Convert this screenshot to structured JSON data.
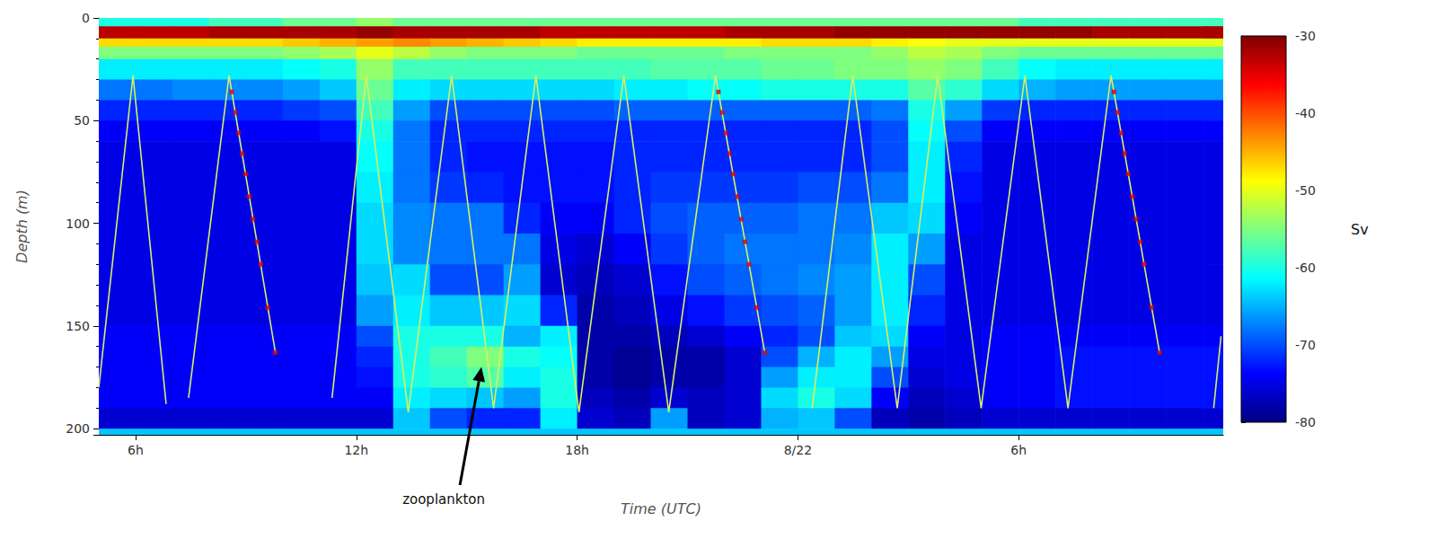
{
  "chart_data": {
    "type": "heatmap",
    "x_label": "Time (UTC)",
    "y_label": "Depth (m)",
    "xlim": [
      5,
      35.56
    ],
    "xticks": [
      {
        "value": 6,
        "label": "6h"
      },
      {
        "value": 12,
        "label": "12h"
      },
      {
        "value": 18,
        "label": "18h"
      },
      {
        "value": 24,
        "label": "8/22"
      },
      {
        "value": 30,
        "label": "6h"
      }
    ],
    "ylim": [
      0,
      203
    ],
    "yticks": [
      0,
      50,
      100,
      150,
      200
    ],
    "grid": false,
    "cells": {
      "x_edges": [
        5,
        6,
        7,
        8,
        9,
        10,
        11,
        12,
        13,
        14,
        15,
        16,
        17,
        18,
        19,
        20,
        21,
        22,
        23,
        24,
        25,
        26,
        27,
        28,
        29,
        30,
        31,
        32,
        33,
        34,
        35,
        36
      ],
      "depth_edges": [
        0,
        4,
        10,
        14,
        20,
        30,
        40,
        50,
        60,
        75,
        90,
        105,
        120,
        135,
        150,
        160,
        170,
        180,
        190,
        200,
        203
      ],
      "sv": [
        [
          -60,
          -60,
          -60,
          -58,
          -58,
          -56,
          -56,
          -54,
          -56,
          -56,
          -56,
          -56,
          -56,
          -56,
          -56,
          -56,
          -56,
          -56,
          -56,
          -56,
          -56,
          -56,
          -56,
          -56,
          -56,
          -58,
          -58,
          -58,
          -58,
          -58,
          -58
        ],
        [
          -33,
          -33,
          -33,
          -32,
          -32,
          -32,
          -32,
          -31,
          -32,
          -32,
          -32,
          -32,
          -33,
          -33,
          -33,
          -33,
          -33,
          -32,
          -32,
          -32,
          -31,
          -31,
          -31,
          -31,
          -31,
          -31,
          -31,
          -32,
          -32,
          -32,
          -32
        ],
        [
          -47,
          -47,
          -47,
          -47,
          -47,
          -46,
          -45,
          -44,
          -43,
          -44,
          -45,
          -46,
          -47,
          -48,
          -48,
          -48,
          -48,
          -48,
          -47,
          -47,
          -47,
          -48,
          -49,
          -50,
          -50,
          -50,
          -50,
          -50,
          -50,
          -50,
          -50
        ],
        [
          -55,
          -55,
          -55,
          -55,
          -55,
          -54,
          -53,
          -50,
          -52,
          -54,
          -55,
          -55,
          -55,
          -56,
          -56,
          -56,
          -56,
          -55,
          -55,
          -55,
          -55,
          -54,
          -52,
          -53,
          -55,
          -56,
          -56,
          -56,
          -56,
          -56,
          -56
        ],
        [
          -62,
          -62,
          -62,
          -62,
          -62,
          -61,
          -60,
          -54,
          -58,
          -58,
          -58,
          -58,
          -58,
          -58,
          -58,
          -57,
          -57,
          -57,
          -56,
          -56,
          -55,
          -55,
          -54,
          -55,
          -58,
          -61,
          -62,
          -62,
          -62,
          -62,
          -62
        ],
        [
          -68,
          -68,
          -67,
          -67,
          -67,
          -66,
          -64,
          -56,
          -62,
          -63,
          -63,
          -63,
          -63,
          -63,
          -62,
          -62,
          -61,
          -61,
          -60,
          -60,
          -60,
          -60,
          -57,
          -59,
          -63,
          -65,
          -66,
          -66,
          -66,
          -66,
          -66
        ],
        [
          -72,
          -72,
          -72,
          -72,
          -72,
          -71,
          -70,
          -58,
          -66,
          -70,
          -70,
          -70,
          -70,
          -70,
          -69,
          -69,
          -69,
          -69,
          -69,
          -69,
          -69,
          -68,
          -60,
          -66,
          -71,
          -72,
          -72,
          -72,
          -72,
          -72,
          -72
        ],
        [
          -74,
          -74,
          -74,
          -74,
          -74,
          -74,
          -73,
          -60,
          -68,
          -72,
          -72,
          -72,
          -72,
          -72,
          -72,
          -72,
          -72,
          -72,
          -72,
          -72,
          -72,
          -70,
          -61,
          -70,
          -74,
          -74,
          -74,
          -74,
          -74,
          -74,
          -74
        ],
        [
          -75,
          -75,
          -75,
          -75,
          -75,
          -75,
          -75,
          -61,
          -68,
          -72,
          -73,
          -73,
          -73,
          -73,
          -72,
          -72,
          -72,
          -72,
          -72,
          -72,
          -72,
          -70,
          -62,
          -72,
          -75,
          -75,
          -75,
          -75,
          -75,
          -75,
          -75
        ],
        [
          -75,
          -75,
          -75,
          -75,
          -75,
          -75,
          -75,
          -62,
          -68,
          -71,
          -72,
          -73,
          -73,
          -73,
          -72,
          -71,
          -71,
          -71,
          -71,
          -70,
          -70,
          -68,
          -62,
          -73,
          -75,
          -75,
          -75,
          -75,
          -75,
          -75,
          -75
        ],
        [
          -75,
          -75,
          -75,
          -75,
          -75,
          -75,
          -75,
          -63,
          -67,
          -68,
          -68,
          -72,
          -74,
          -74,
          -72,
          -70,
          -69,
          -69,
          -69,
          -68,
          -68,
          -64,
          -63,
          -74,
          -75,
          -75,
          -75,
          -75,
          -75,
          -75,
          -75
        ],
        [
          -75,
          -75,
          -75,
          -75,
          -75,
          -75,
          -75,
          -63,
          -67,
          -68,
          -68,
          -68,
          -75,
          -76,
          -74,
          -71,
          -69,
          -68,
          -68,
          -68,
          -67,
          -62,
          -66,
          -75,
          -75,
          -75,
          -75,
          -75,
          -75,
          -75,
          -75
        ],
        [
          -75,
          -75,
          -75,
          -75,
          -75,
          -75,
          -75,
          -64,
          -63,
          -70,
          -70,
          -66,
          -76,
          -77,
          -76,
          -73,
          -70,
          -69,
          -68,
          -67,
          -66,
          -62,
          -70,
          -75,
          -75,
          -75,
          -75,
          -75,
          -75,
          -75,
          -75
        ],
        [
          -75,
          -75,
          -75,
          -75,
          -75,
          -75,
          -75,
          -66,
          -62,
          -64,
          -64,
          -63,
          -72,
          -78,
          -77,
          -75,
          -73,
          -71,
          -70,
          -69,
          -66,
          -62,
          -72,
          -75,
          -75,
          -75,
          -75,
          -75,
          -75,
          -75,
          -75
        ],
        [
          -74,
          -74,
          -74,
          -74,
          -74,
          -74,
          -74,
          -70,
          -60,
          -60,
          -60,
          -65,
          -62,
          -78,
          -78,
          -77,
          -76,
          -74,
          -72,
          -70,
          -64,
          -63,
          -74,
          -75,
          -74,
          -74,
          -74,
          -74,
          -74,
          -74,
          -74
        ],
        [
          -74,
          -74,
          -74,
          -74,
          -74,
          -74,
          -74,
          -72,
          -60,
          -58,
          -55,
          -60,
          -61,
          -78,
          -79,
          -78,
          -78,
          -76,
          -70,
          -65,
          -62,
          -66,
          -75,
          -75,
          -74,
          -74,
          -73,
          -73,
          -73,
          -73,
          -73
        ],
        [
          -74,
          -74,
          -74,
          -74,
          -74,
          -74,
          -74,
          -73,
          -60,
          -59,
          -57,
          -62,
          -60,
          -78,
          -79,
          -78,
          -78,
          -76,
          -66,
          -62,
          -62,
          -70,
          -76,
          -75,
          -74,
          -74,
          -73,
          -73,
          -73,
          -73,
          -73
        ],
        [
          -74,
          -74,
          -74,
          -74,
          -74,
          -74,
          -74,
          -74,
          -62,
          -63,
          -64,
          -66,
          -60,
          -77,
          -78,
          -76,
          -77,
          -76,
          -63,
          -60,
          -63,
          -74,
          -77,
          -76,
          -74,
          -74,
          -73,
          -73,
          -73,
          -73,
          -73
        ],
        [
          -76,
          -76,
          -76,
          -76,
          -76,
          -76,
          -76,
          -76,
          -64,
          -70,
          -72,
          -72,
          -62,
          -76,
          -77,
          -66,
          -77,
          -76,
          -65,
          -64,
          -70,
          -77,
          -78,
          -77,
          -76,
          -76,
          -76,
          -76,
          -76,
          -76,
          -76
        ],
        [
          -64,
          -64,
          -64,
          -64,
          -64,
          -64,
          -64,
          -64,
          -64,
          -64,
          -64,
          -64,
          -64,
          -64,
          -64,
          -64,
          -64,
          -64,
          -64,
          -64,
          -64,
          -64,
          -64,
          -64,
          -64,
          -64,
          -64,
          -64,
          -64,
          -64,
          -64
        ]
      ]
    },
    "colorbar": {
      "label": "Sv",
      "range": [
        -80,
        -30
      ],
      "ticks": [
        -80,
        -70,
        -60,
        -50,
        -40,
        -30
      ]
    },
    "series": [
      {
        "type": "line",
        "color": "#d8f060",
        "x": [
          5.0,
          5.93,
          6.83,
          null,
          7.44,
          8.54,
          9.8,
          null,
          11.34,
          12.27,
          13.41,
          14.59,
          15.73,
          16.88,
          18.05,
          19.27,
          20.49,
          21.76,
          23.1,
          null,
          24.39,
          25.49,
          26.7,
          27.8,
          28.98,
          30.17,
          31.34,
          32.51,
          33.83,
          null,
          35.3,
          35.5
        ],
        "y": [
          180,
          28,
          188,
          null,
          185,
          28,
          163,
          null,
          185,
          28,
          192,
          28,
          190,
          28,
          192,
          28,
          192,
          28,
          163,
          null,
          190,
          28,
          190,
          28,
          190,
          28,
          190,
          28,
          163,
          null,
          190,
          155
        ]
      },
      {
        "type": "scatter",
        "marker": "square",
        "color": "#e00000",
        "x": [
          8.61,
          8.71,
          8.8,
          8.89,
          8.99,
          9.09,
          9.19,
          9.3,
          9.4,
          9.59,
          9.8,
          21.84,
          21.94,
          22.04,
          22.14,
          22.24,
          22.35,
          22.46,
          22.56,
          22.67,
          22.88,
          23.1,
          32.59,
          32.69,
          32.78,
          32.88,
          32.98,
          33.09,
          33.19,
          33.3,
          33.41,
          33.61,
          33.83
        ],
        "y": [
          36,
          46,
          56,
          66,
          76,
          87,
          98,
          109,
          120,
          141,
          163,
          36,
          46,
          56,
          66,
          76,
          87,
          98,
          109,
          120,
          141,
          163,
          36,
          46,
          56,
          66,
          76,
          87,
          98,
          109,
          120,
          141,
          163
        ]
      }
    ],
    "annotations": [
      {
        "text": "zooplankton",
        "x": 15.4,
        "y": 170
      }
    ]
  }
}
